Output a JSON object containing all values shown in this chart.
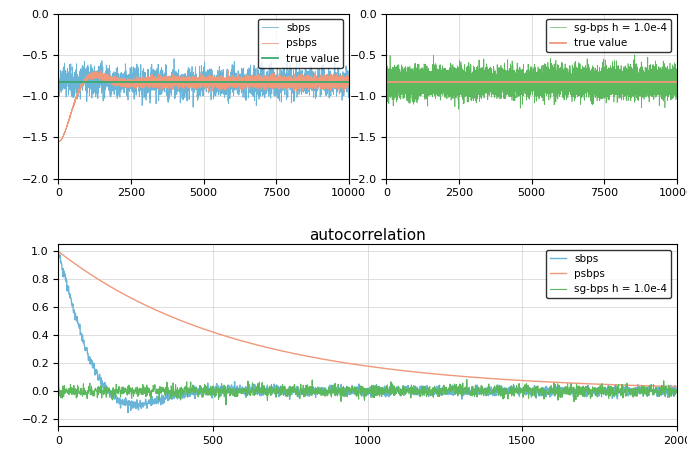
{
  "top_left": {
    "true_value": -0.83,
    "xlim": [
      0,
      10000
    ],
    "ylim": [
      -2.0,
      0.0
    ],
    "yticks": [
      0.0,
      -0.5,
      -1.0,
      -1.5,
      -2.0
    ],
    "xticks": [
      0,
      2500,
      5000,
      7500,
      10000
    ],
    "sbps_color": "#6ab4d8",
    "psbps_color": "#f0987a",
    "true_color": "#3aaa6e",
    "legend_labels": [
      "sbps",
      "psbps",
      "true value"
    ]
  },
  "top_right": {
    "true_value": -0.83,
    "xlim": [
      0,
      10000
    ],
    "ylim": [
      -2.0,
      0.0
    ],
    "yticks": [
      0.0,
      -0.5,
      -1.0,
      -1.5,
      -2.0
    ],
    "xticks": [
      0,
      2500,
      5000,
      7500,
      10000
    ],
    "sgbps_color": "#5cb85c",
    "true_color": "#f0987a",
    "legend_labels": [
      "sg-bps h = 1.0e-4",
      "true value"
    ]
  },
  "bottom": {
    "xlim": [
      0,
      2000
    ],
    "ylim": [
      -0.25,
      1.05
    ],
    "yticks": [
      -0.2,
      0.0,
      0.2,
      0.4,
      0.6,
      0.8,
      1.0
    ],
    "xticks": [
      0,
      500,
      1000,
      1500,
      2000
    ],
    "sbps_color": "#6ab4d8",
    "psbps_color": "#f0987a",
    "sgbps_color": "#5cb85c",
    "title": "autocorrelation",
    "legend_labels": [
      "sbps",
      "psbps",
      "sg-bps h = 1.0e-4"
    ]
  },
  "seed": 42
}
